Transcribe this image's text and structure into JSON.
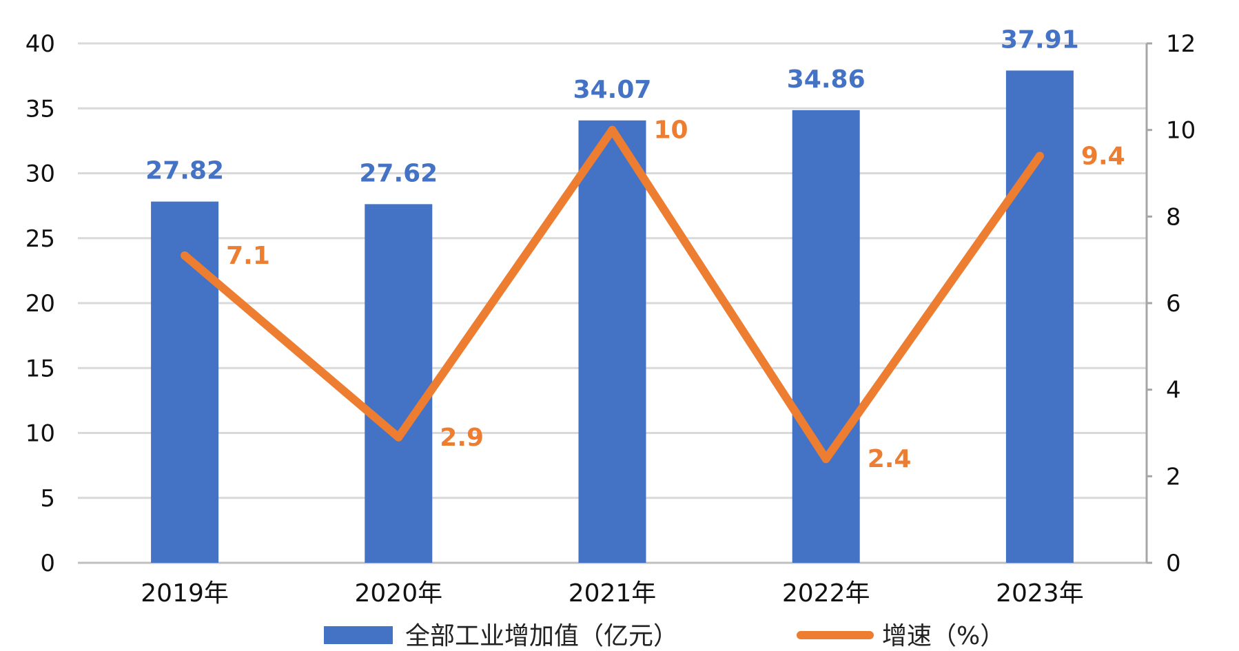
{
  "chart_data": {
    "type": "bar",
    "categories": [
      "2019年",
      "2020年",
      "2021年",
      "2022年",
      "2023年"
    ],
    "series": [
      {
        "name": "全部工业增加值（亿元）",
        "type": "bar",
        "axis": "left",
        "color": "#4472C4",
        "values": [
          27.82,
          27.62,
          34.07,
          34.86,
          37.91
        ],
        "labels": [
          "27.82",
          "27.62",
          "34.07",
          "34.86",
          "37.91"
        ]
      },
      {
        "name": "增速（%）",
        "type": "line",
        "axis": "right",
        "color": "#ED7D31",
        "values": [
          7.1,
          2.9,
          10,
          2.4,
          9.4
        ],
        "labels": [
          "7.1",
          "2.9",
          "10",
          "2.4",
          "9.4"
        ]
      }
    ],
    "ylim": [
      0,
      40
    ],
    "y2lim": [
      0,
      12
    ],
    "yticks": [
      "0",
      "5",
      "10",
      "15",
      "20",
      "25",
      "30",
      "35",
      "40"
    ],
    "y2ticks": [
      "0",
      "2",
      "4",
      "6",
      "8",
      "10",
      "12"
    ],
    "grid": true,
    "legend": "bottom"
  }
}
